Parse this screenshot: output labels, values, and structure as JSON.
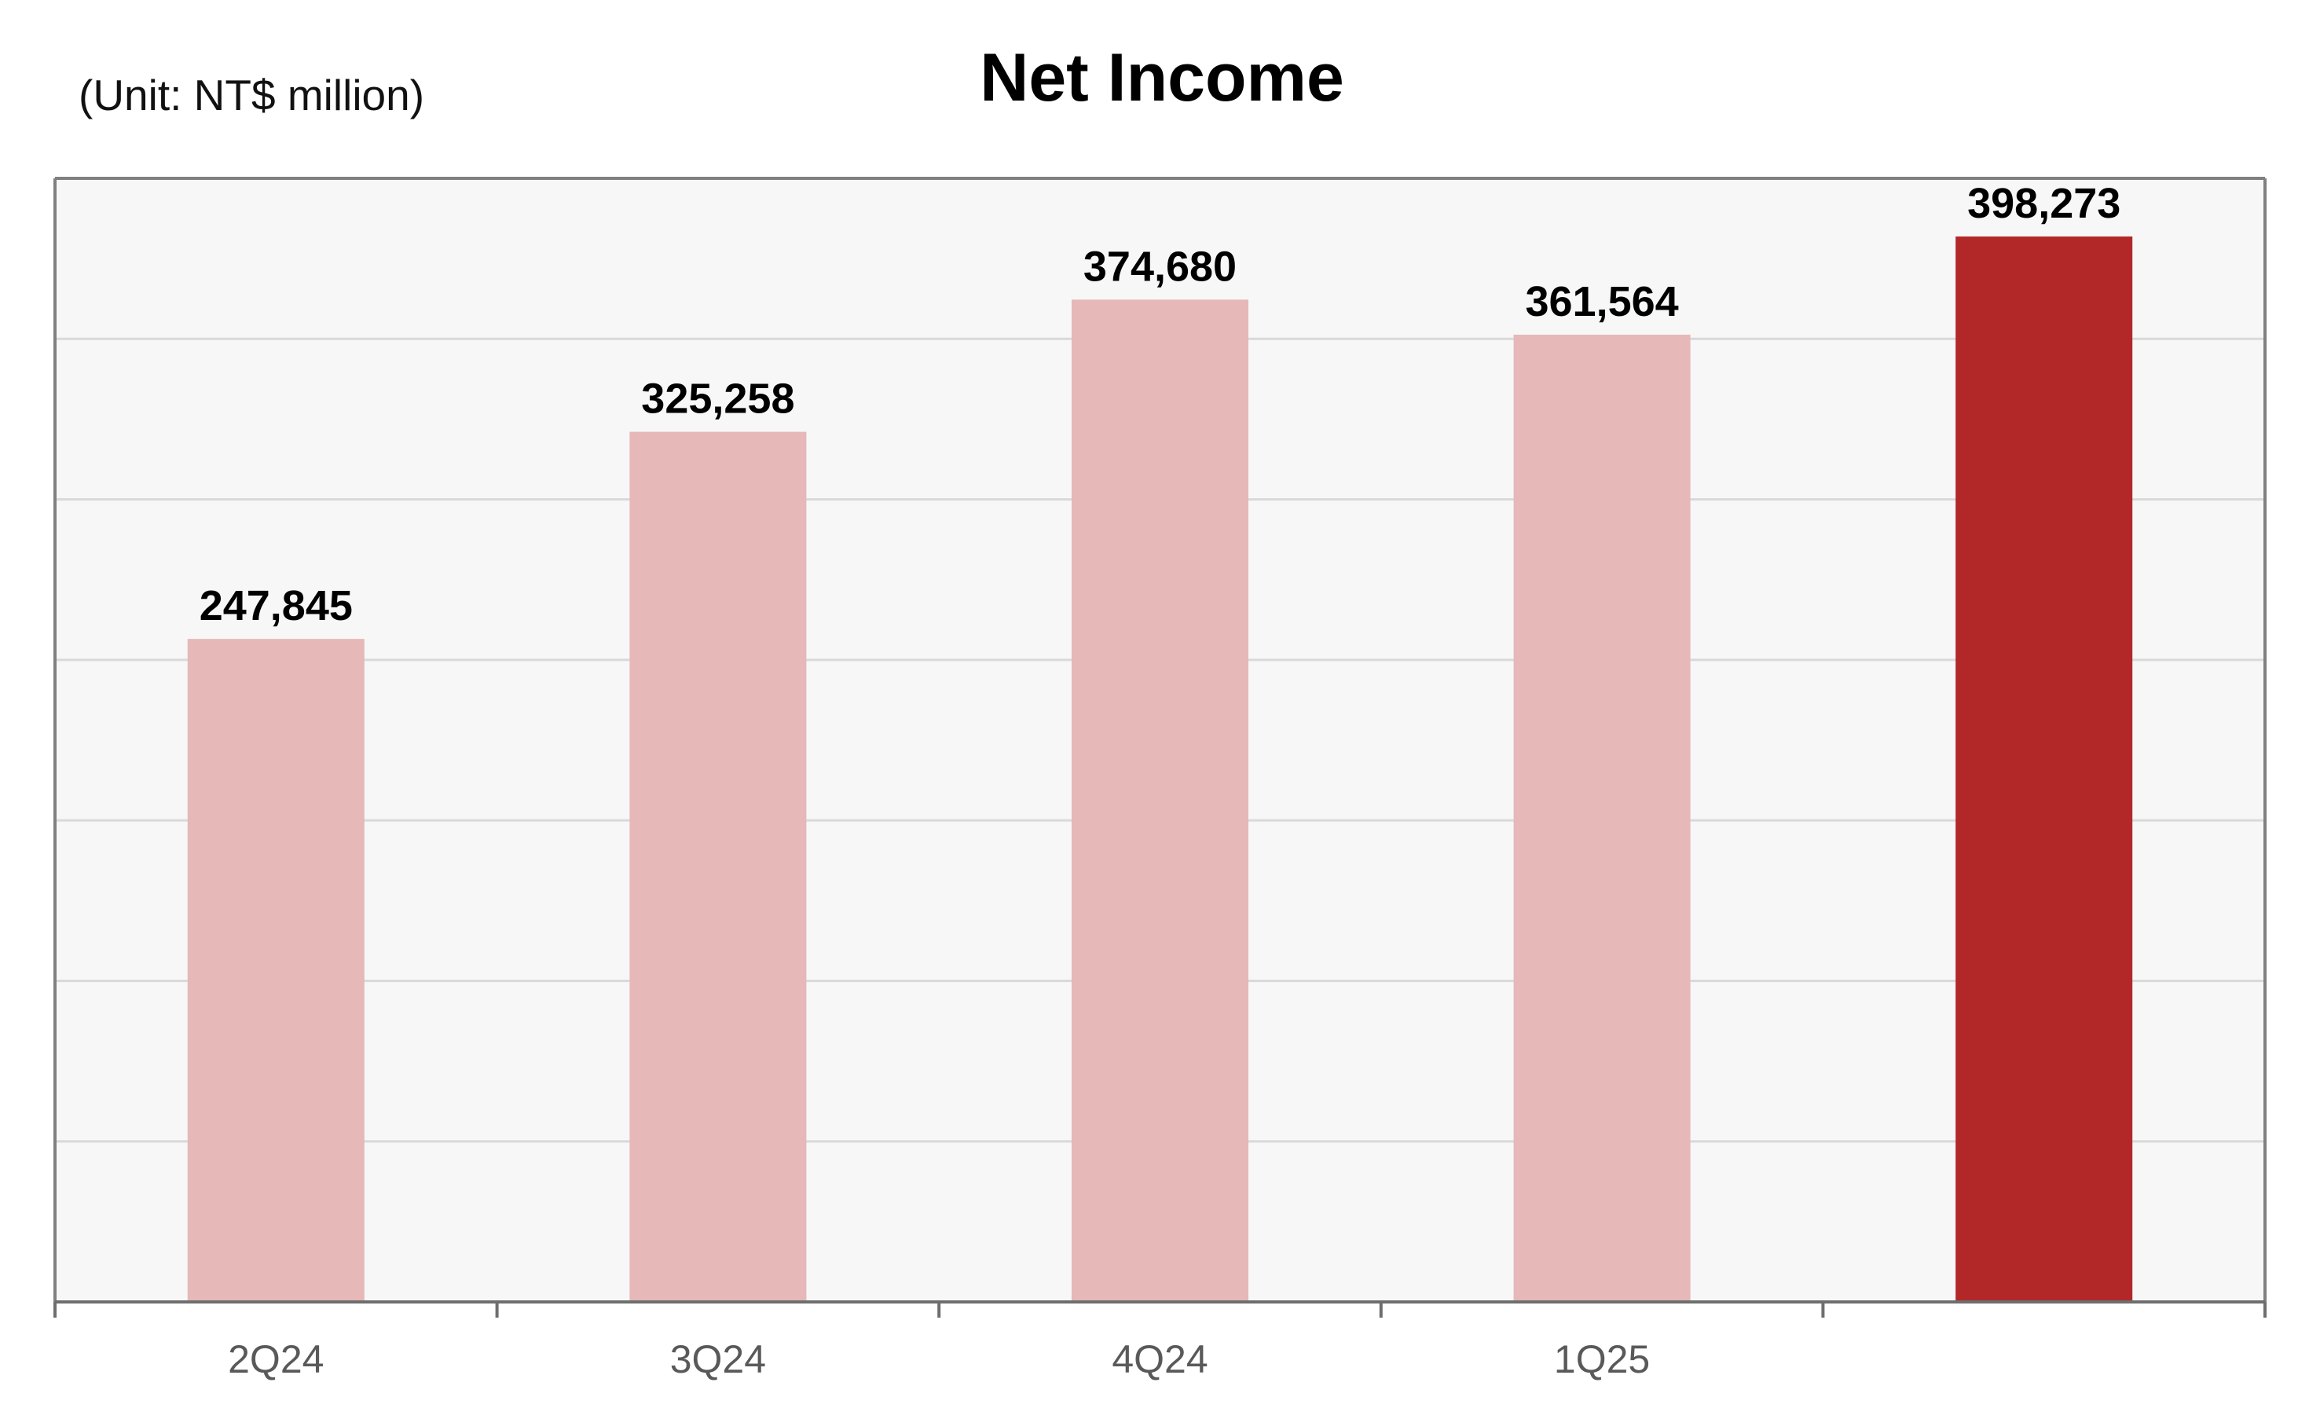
{
  "chart_data": {
    "type": "bar",
    "title": "Net Income",
    "subtitle": "(Unit: NT$ million)",
    "xlabel": "",
    "ylabel": "",
    "categories": [
      "2Q24",
      "3Q24",
      "4Q24",
      "1Q25",
      ""
    ],
    "values": [
      247845,
      325258,
      374680,
      361564,
      398273
    ],
    "value_labels": [
      "247,845",
      "325,258",
      "374,680",
      "361,564",
      "398,273"
    ],
    "ylim": [
      0,
      420000
    ],
    "grid": true,
    "gridline_step": 60000,
    "legend": "none",
    "colors": {
      "bar": "#e6b8b8",
      "highlight_bar": "#b22828",
      "plot_background": "#f7f7f7",
      "gridline": "#d9d9d9",
      "frame": "#808080"
    },
    "highlight_index": 4
  }
}
